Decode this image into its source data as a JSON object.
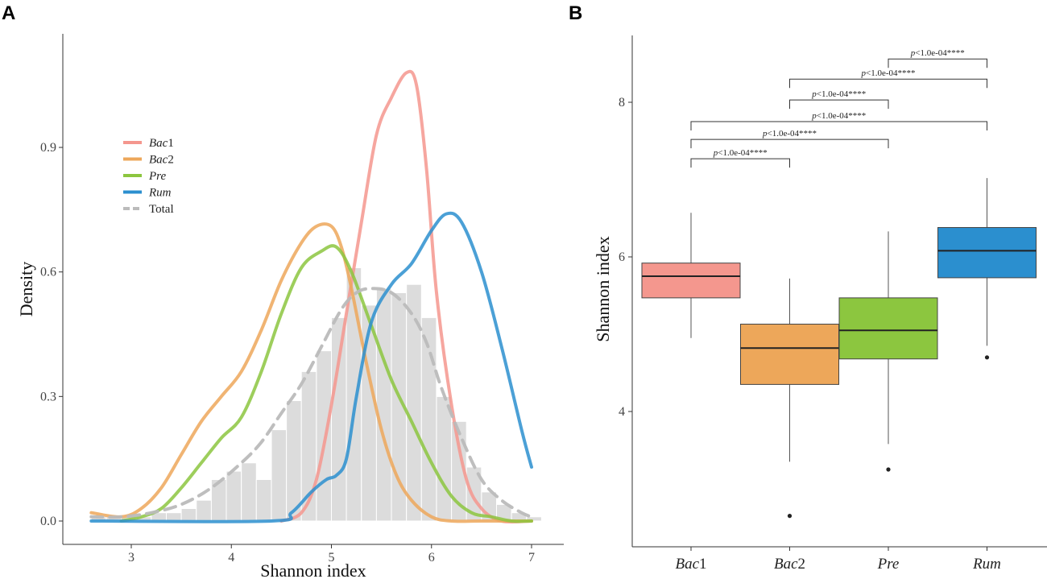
{
  "panel_labels": {
    "a": "A",
    "b": "B"
  },
  "colors": {
    "Bac1": "#F4978E",
    "Bac2": "#EDA75A",
    "Pre": "#8CC63F",
    "Rum": "#2B8FCF",
    "Total": "#BBBBBB",
    "hist": "#DCDCDC"
  },
  "chart_data": [
    {
      "type": "histogram+density",
      "panel": "A",
      "xlabel": "Shannon index",
      "ylabel": "Density",
      "xlim": [
        2.5,
        7.1
      ],
      "ylim": [
        -0.02,
        1.18
      ],
      "xticks": [
        "3",
        "4",
        "5",
        "6",
        "7"
      ],
      "yticks": [
        "0.0",
        "0.3",
        "0.6",
        "0.9"
      ],
      "legend": [
        {
          "name": "Bac",
          "suffix": "1",
          "italic": true,
          "key": "Bac1"
        },
        {
          "name": "Bac",
          "suffix": "2",
          "italic": true,
          "key": "Bac2"
        },
        {
          "name": "Pre",
          "suffix": "",
          "italic": true,
          "key": "Pre"
        },
        {
          "name": "Rum",
          "suffix": "",
          "italic": true,
          "key": "Rum"
        },
        {
          "name": "Total",
          "suffix": "",
          "italic": false,
          "key": "Total",
          "dashed": true
        }
      ],
      "histogram": {
        "bin_width": 0.15,
        "bins": [
          [
            2.6,
            0.01
          ],
          [
            2.75,
            0.01
          ],
          [
            2.9,
            0.01
          ],
          [
            3.05,
            0.01
          ],
          [
            3.2,
            0.02
          ],
          [
            3.35,
            0.02
          ],
          [
            3.5,
            0.03
          ],
          [
            3.65,
            0.05
          ],
          [
            3.8,
            0.1
          ],
          [
            3.95,
            0.12
          ],
          [
            4.1,
            0.14
          ],
          [
            4.25,
            0.1
          ],
          [
            4.4,
            0.22
          ],
          [
            4.55,
            0.29
          ],
          [
            4.7,
            0.36
          ],
          [
            4.85,
            0.41
          ],
          [
            5.0,
            0.49
          ],
          [
            5.15,
            0.61
          ],
          [
            5.3,
            0.52
          ],
          [
            5.45,
            0.56
          ],
          [
            5.6,
            0.55
          ],
          [
            5.75,
            0.57
          ],
          [
            5.9,
            0.49
          ],
          [
            6.05,
            0.3
          ],
          [
            6.2,
            0.24
          ],
          [
            6.35,
            0.13
          ],
          [
            6.5,
            0.07
          ],
          [
            6.65,
            0.04
          ],
          [
            6.8,
            0.02
          ],
          [
            6.95,
            0.01
          ]
        ]
      },
      "series": [
        {
          "name": "Bac1",
          "x": [
            4.5,
            4.7,
            4.85,
            5.0,
            5.15,
            5.3,
            5.45,
            5.6,
            5.75,
            5.85,
            5.95,
            6.05,
            6.2,
            6.35,
            6.5,
            6.7,
            7.0
          ],
          "y": [
            0.0,
            0.02,
            0.1,
            0.28,
            0.5,
            0.72,
            0.93,
            1.02,
            1.08,
            1.05,
            0.85,
            0.55,
            0.28,
            0.1,
            0.03,
            0.0,
            0.0
          ]
        },
        {
          "name": "Bac2",
          "x": [
            2.6,
            2.9,
            3.1,
            3.3,
            3.5,
            3.7,
            3.9,
            4.1,
            4.3,
            4.5,
            4.7,
            4.85,
            5.0,
            5.1,
            5.2,
            5.35,
            5.5,
            5.65,
            5.8,
            6.0,
            6.2,
            6.5,
            7.0
          ],
          "y": [
            0.02,
            0.01,
            0.03,
            0.08,
            0.16,
            0.24,
            0.3,
            0.36,
            0.46,
            0.58,
            0.67,
            0.71,
            0.71,
            0.66,
            0.56,
            0.38,
            0.22,
            0.11,
            0.05,
            0.01,
            0.0,
            0.0,
            0.0
          ]
        },
        {
          "name": "Pre",
          "x": [
            2.9,
            3.1,
            3.3,
            3.5,
            3.7,
            3.9,
            4.1,
            4.3,
            4.5,
            4.7,
            4.9,
            5.05,
            5.2,
            5.4,
            5.6,
            5.8,
            6.0,
            6.2,
            6.4,
            6.6,
            6.8,
            7.0
          ],
          "y": [
            0.0,
            0.01,
            0.03,
            0.08,
            0.14,
            0.2,
            0.25,
            0.36,
            0.5,
            0.61,
            0.65,
            0.66,
            0.6,
            0.47,
            0.34,
            0.24,
            0.14,
            0.06,
            0.02,
            0.01,
            0.0,
            0.0
          ]
        },
        {
          "name": "Rum",
          "x": [
            2.6,
            4.4,
            4.6,
            4.8,
            4.95,
            5.05,
            5.15,
            5.25,
            5.4,
            5.6,
            5.8,
            6.0,
            6.15,
            6.3,
            6.5,
            6.7,
            6.9,
            7.0
          ],
          "y": [
            0.0,
            0.0,
            0.02,
            0.07,
            0.1,
            0.11,
            0.15,
            0.3,
            0.48,
            0.57,
            0.62,
            0.7,
            0.74,
            0.72,
            0.6,
            0.42,
            0.22,
            0.13
          ]
        },
        {
          "name": "Total",
          "dashed": true,
          "x": [
            2.6,
            2.9,
            3.2,
            3.5,
            3.8,
            4.1,
            4.3,
            4.5,
            4.7,
            4.9,
            5.1,
            5.25,
            5.4,
            5.6,
            5.8,
            5.95,
            6.1,
            6.3,
            6.5,
            6.7,
            6.9,
            7.0
          ],
          "y": [
            0.01,
            0.01,
            0.02,
            0.04,
            0.08,
            0.14,
            0.19,
            0.26,
            0.33,
            0.42,
            0.51,
            0.55,
            0.56,
            0.55,
            0.5,
            0.43,
            0.32,
            0.2,
            0.1,
            0.05,
            0.02,
            0.01
          ]
        }
      ]
    },
    {
      "type": "boxplot",
      "panel": "B",
      "xlabel": "",
      "ylabel": "Shannon index",
      "ylim": [
        2.35,
        9.0
      ],
      "yticks": [
        "4",
        "6",
        "8"
      ],
      "categories": [
        {
          "name": "Bac",
          "suffix": "1",
          "key": "Bac1"
        },
        {
          "name": "Bac",
          "suffix": "2",
          "key": "Bac2"
        },
        {
          "name": "Pre",
          "suffix": "",
          "key": "Pre"
        },
        {
          "name": "Rum",
          "suffix": "",
          "key": "Rum"
        }
      ],
      "boxes": [
        {
          "key": "Bac1",
          "min": 4.95,
          "q1": 5.47,
          "median": 5.75,
          "q3": 5.92,
          "max": 6.57,
          "outliers": []
        },
        {
          "key": "Bac2",
          "min": 3.35,
          "q1": 4.35,
          "median": 4.82,
          "q3": 5.13,
          "max": 5.72,
          "outliers": [
            2.65
          ]
        },
        {
          "key": "Pre",
          "min": 3.58,
          "q1": 4.68,
          "median": 5.05,
          "q3": 5.47,
          "max": 6.33,
          "outliers": [
            3.25
          ]
        },
        {
          "key": "Rum",
          "min": 4.85,
          "q1": 5.73,
          "median": 6.08,
          "q3": 6.38,
          "max": 7.02,
          "outliers": [
            4.7
          ]
        }
      ],
      "comparisons": [
        {
          "from": 0,
          "to": 1,
          "y": 7.27,
          "p": "p",
          "label": "<1.0e-04****"
        },
        {
          "from": 0,
          "to": 2,
          "y": 7.52,
          "p": "p",
          "label": "<1.0e-04****"
        },
        {
          "from": 0,
          "to": 3,
          "y": 7.75,
          "p": "p",
          "label": "<1.0e-04****"
        },
        {
          "from": 1,
          "to": 2,
          "y": 8.03,
          "p": "p",
          "label": "<1.0e-04****"
        },
        {
          "from": 1,
          "to": 3,
          "y": 8.3,
          "p": "p",
          "label": "<1.0e-04****"
        },
        {
          "from": 2,
          "to": 3,
          "y": 8.56,
          "p": "p",
          "label": "<1.0e-04****"
        }
      ]
    }
  ]
}
